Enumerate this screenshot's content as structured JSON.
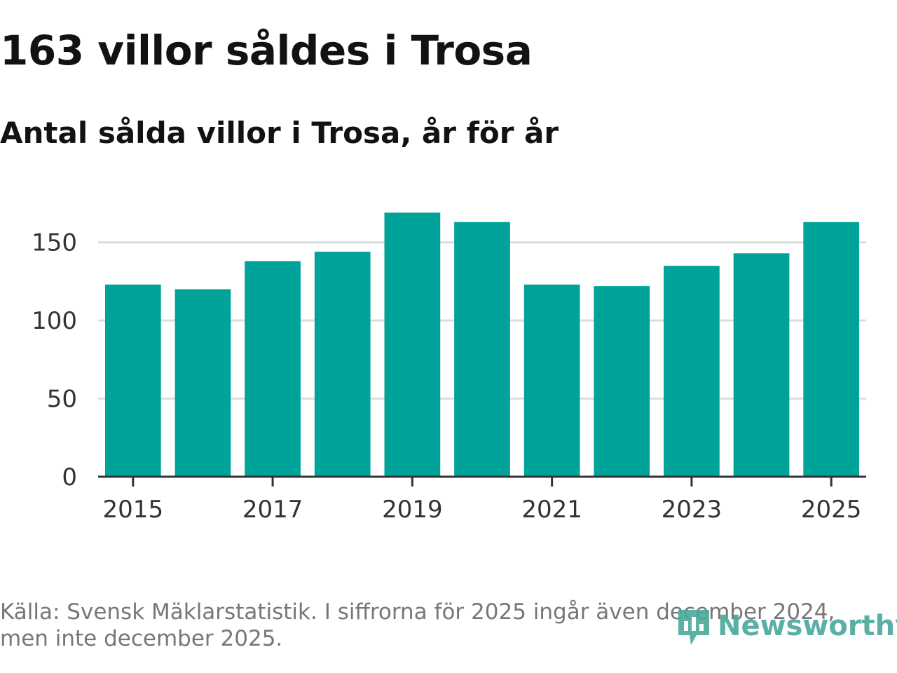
{
  "title": "163 villor såldes i Trosa",
  "subtitle": "Antal sålda villor i Trosa, år för år",
  "source": "Källa: Svensk Mäklarstatistik. I siffrorna för 2025 ingår även december 2024, men inte december 2025.",
  "logo": {
    "text": "Newsworthy",
    "icon": "newsworthy-logo-icon"
  },
  "colors": {
    "bar": "#00a39a",
    "grid": "#dddddd",
    "axis": "#333333",
    "text": "#121212",
    "source": "#777777"
  },
  "chart_data": {
    "type": "bar",
    "title": "163 villor såldes i Trosa",
    "subtitle": "Antal sålda villor i Trosa, år för år",
    "xlabel": "",
    "ylabel": "",
    "categories": [
      "2015",
      "2016",
      "2017",
      "2018",
      "2019",
      "2020",
      "2021",
      "2022",
      "2023",
      "2024",
      "2025"
    ],
    "values": [
      123,
      120,
      138,
      144,
      169,
      163,
      123,
      122,
      135,
      143,
      163
    ],
    "x_tick_labels": [
      "2015",
      "2017",
      "2019",
      "2021",
      "2023",
      "2025"
    ],
    "y_ticks": [
      "0",
      "50",
      "100",
      "150"
    ],
    "ylim": [
      0,
      175
    ],
    "grid": true,
    "legend": "none"
  }
}
